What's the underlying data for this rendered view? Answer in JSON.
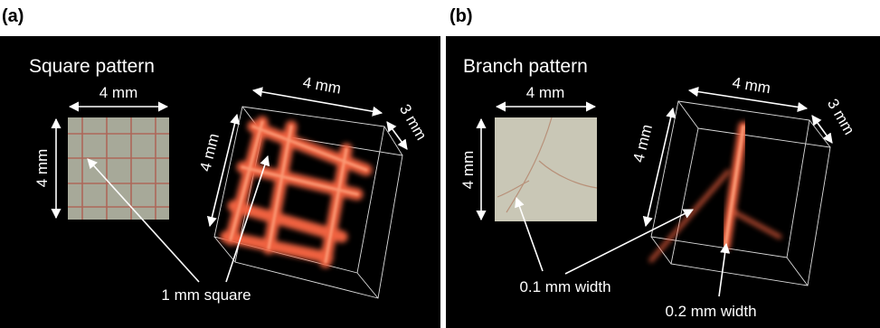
{
  "panels": [
    {
      "label": "(a)",
      "title": "Square pattern",
      "photo": {
        "width_label": "4 mm",
        "height_label": "4 mm"
      },
      "volume": {
        "width_label": "4 mm",
        "depth_label": "3 mm",
        "height_label": "4 mm"
      },
      "annotations": [
        "1 mm square"
      ]
    },
    {
      "label": "(b)",
      "title": "Branch pattern",
      "photo": {
        "width_label": "4 mm",
        "height_label": "4 mm"
      },
      "volume": {
        "width_label": "4 mm",
        "depth_label": "3 mm",
        "height_label": "4 mm"
      },
      "annotations": [
        "0.1 mm width",
        "0.2 mm width"
      ]
    }
  ]
}
